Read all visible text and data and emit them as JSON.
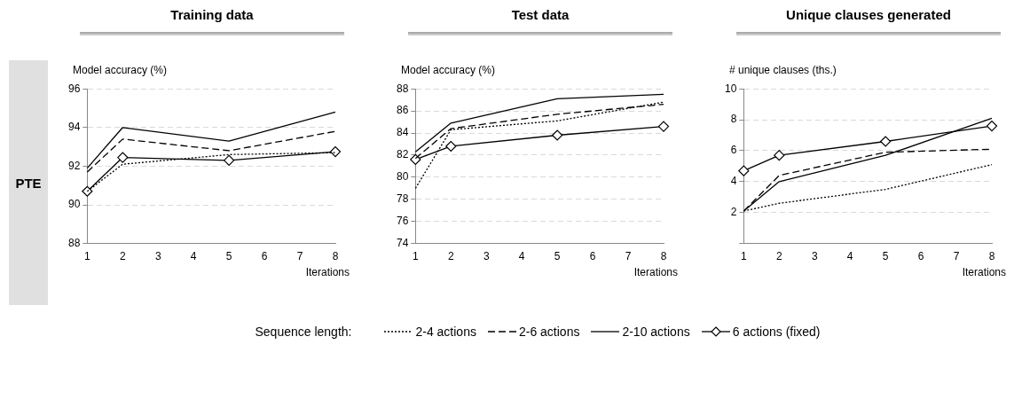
{
  "chart_data": [
    {
      "type": "line",
      "title": "Training data",
      "ylabel": "Model accuracy (%)",
      "xlabel": "Iterations",
      "annotations": [
        "PTE"
      ],
      "legend_title": "Sequence length:",
      "legend": "bottom",
      "grid": "y",
      "x": [
        1,
        2,
        5,
        8
      ],
      "xlim": [
        1,
        8
      ],
      "xticks": [
        1,
        2,
        3,
        4,
        5,
        6,
        7,
        8
      ],
      "ylim": [
        88,
        96
      ],
      "yticks": [
        88,
        90,
        92,
        94,
        96
      ],
      "series": [
        {
          "name": "2-4 actions",
          "color": "#000000",
          "line_style": "dotted",
          "marker": "none",
          "values": [
            90.7,
            92.1,
            92.6,
            92.7
          ]
        },
        {
          "name": "2-6 actions",
          "color": "#000000",
          "line_style": "dashed",
          "marker": "none",
          "values": [
            91.7,
            93.4,
            92.8,
            93.8
          ]
        },
        {
          "name": "2-10 actions",
          "color": "#000000",
          "line_style": "solid",
          "marker": "none",
          "values": [
            91.9,
            94.0,
            93.3,
            94.8
          ]
        },
        {
          "name": "6 actions (fixed)",
          "color": "#000000",
          "line_style": "solid",
          "marker": "diamond",
          "values": [
            90.7,
            92.45,
            92.3,
            92.75
          ]
        }
      ]
    },
    {
      "type": "line",
      "title": "Test data",
      "ylabel": "Model accuracy (%)",
      "xlabel": "Iterations",
      "grid": "y",
      "x": [
        1,
        2,
        5,
        8
      ],
      "xlim": [
        1,
        8
      ],
      "xticks": [
        1,
        2,
        3,
        4,
        5,
        6,
        7,
        8
      ],
      "ylim": [
        74,
        88
      ],
      "yticks": [
        74,
        76,
        78,
        80,
        82,
        84,
        86,
        88
      ],
      "series": [
        {
          "color": "#000000",
          "line_style": "dotted",
          "marker": "none",
          "values": [
            79.0,
            84.3,
            85.1,
            86.8
          ]
        },
        {
          "color": "#000000",
          "line_style": "dashed",
          "marker": "none",
          "values": [
            81.7,
            84.4,
            85.7,
            86.6
          ]
        },
        {
          "color": "#000000",
          "line_style": "solid",
          "marker": "none",
          "values": [
            82.3,
            84.9,
            87.1,
            87.5
          ]
        },
        {
          "color": "#000000",
          "line_style": "solid",
          "marker": "diamond",
          "values": [
            81.6,
            82.8,
            83.8,
            84.6
          ]
        }
      ]
    },
    {
      "type": "line",
      "title": "Unique clauses generated",
      "ylabel": "# unique clauses (ths.)",
      "xlabel": "Iterations",
      "grid": "y",
      "x": [
        1,
        2,
        5,
        8
      ],
      "xlim": [
        1,
        8
      ],
      "xticks": [
        1,
        2,
        3,
        4,
        5,
        6,
        7,
        8
      ],
      "ylim": [
        0,
        10
      ],
      "yticks": [
        {
          "value": 0,
          "label": null
        },
        2,
        4,
        6,
        8,
        10
      ],
      "series": [
        {
          "color": "#000000",
          "line_style": "dotted",
          "marker": "none",
          "values": [
            2.1,
            2.6,
            3.5,
            5.1
          ]
        },
        {
          "color": "#000000",
          "line_style": "dashed",
          "marker": "none",
          "values": [
            2.1,
            4.4,
            5.9,
            6.1
          ]
        },
        {
          "color": "#000000",
          "line_style": "solid",
          "marker": "none",
          "values": [
            2.1,
            4.0,
            5.7,
            8.1
          ]
        },
        {
          "color": "#000000",
          "line_style": "solid",
          "marker": "diamond",
          "values": [
            4.7,
            5.7,
            6.6,
            7.6
          ]
        }
      ]
    }
  ]
}
